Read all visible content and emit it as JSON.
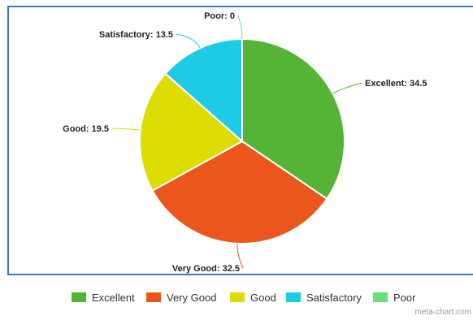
{
  "chart_data": {
    "type": "pie",
    "categories": [
      "Excellent",
      "Very Good",
      "Good",
      "Satisfactory",
      "Poor"
    ],
    "values": [
      34.5,
      32.5,
      19.5,
      13.5,
      0
    ],
    "colors": [
      "#55b436",
      "#eb561c",
      "#dcdc00",
      "#1ecbe6",
      "#66e07c"
    ],
    "data_labels": [
      "Excellent: 34.5",
      "Very Good: 32.5",
      "Good: 19.5",
      "Satisfactory: 13.5",
      "Poor: 0"
    ],
    "title": "",
    "legend": "bottom",
    "legend_labels": [
      "Excellent",
      "Very Good",
      "Good",
      "Satisfactory",
      "Poor"
    ]
  },
  "watermark": "meta-chart.com"
}
